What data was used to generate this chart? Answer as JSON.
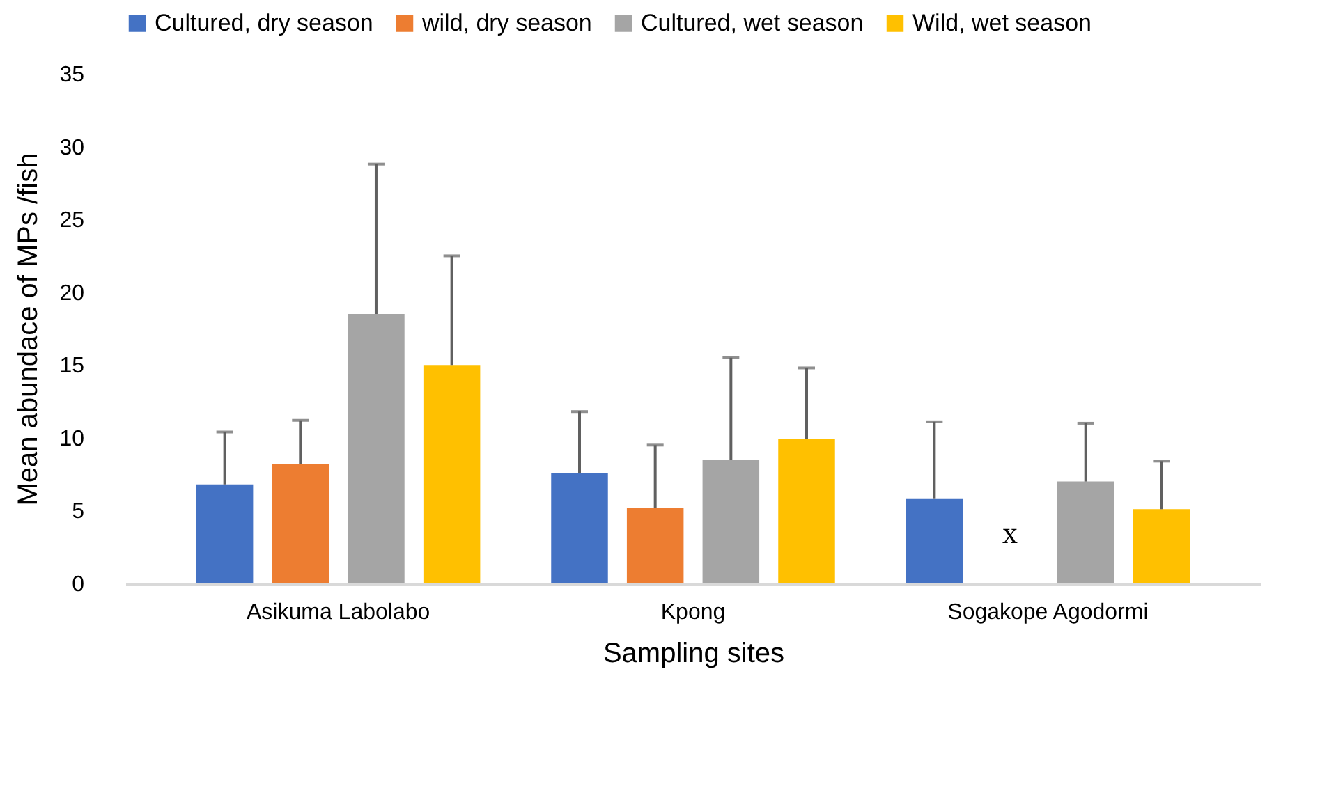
{
  "chart_data": {
    "type": "bar",
    "xlabel": "Sampling sites",
    "ylabel": "Mean abundace of MPs /fish",
    "categories": [
      "Asikuma Labolabo",
      "Kpong",
      "Sogakope Agodormi"
    ],
    "series": [
      {
        "name": "Cultured, dry season",
        "color": "#4472c4",
        "values": [
          6.8,
          7.6,
          5.8
        ],
        "errors": [
          [
            6.8,
            10.4
          ],
          [
            7.6,
            11.8
          ],
          [
            5.8,
            11.1
          ]
        ]
      },
      {
        "name": "wild, dry season",
        "color": "#ed7d31",
        "values": [
          8.2,
          5.2,
          null
        ],
        "errors": [
          [
            8.2,
            11.2
          ],
          [
            5.2,
            9.5
          ],
          null
        ]
      },
      {
        "name": "Cultured, wet season",
        "color": "#a5a5a5",
        "values": [
          18.5,
          8.5,
          7.0
        ],
        "errors": [
          [
            18.5,
            28.8
          ],
          [
            8.5,
            15.5
          ],
          [
            7.0,
            11.0
          ]
        ]
      },
      {
        "name": "Wild, wet season",
        "color": "#ffc000",
        "values": [
          15.0,
          9.9,
          5.1
        ],
        "errors": [
          [
            15.0,
            22.5
          ],
          [
            9.9,
            14.8
          ],
          [
            5.1,
            8.4
          ]
        ]
      }
    ],
    "annotations": [
      "x"
    ],
    "ylim": [
      0,
      35
    ],
    "yticks": [
      0,
      5,
      10,
      15,
      20,
      25,
      30,
      35
    ],
    "grid": false,
    "legend": "top"
  }
}
